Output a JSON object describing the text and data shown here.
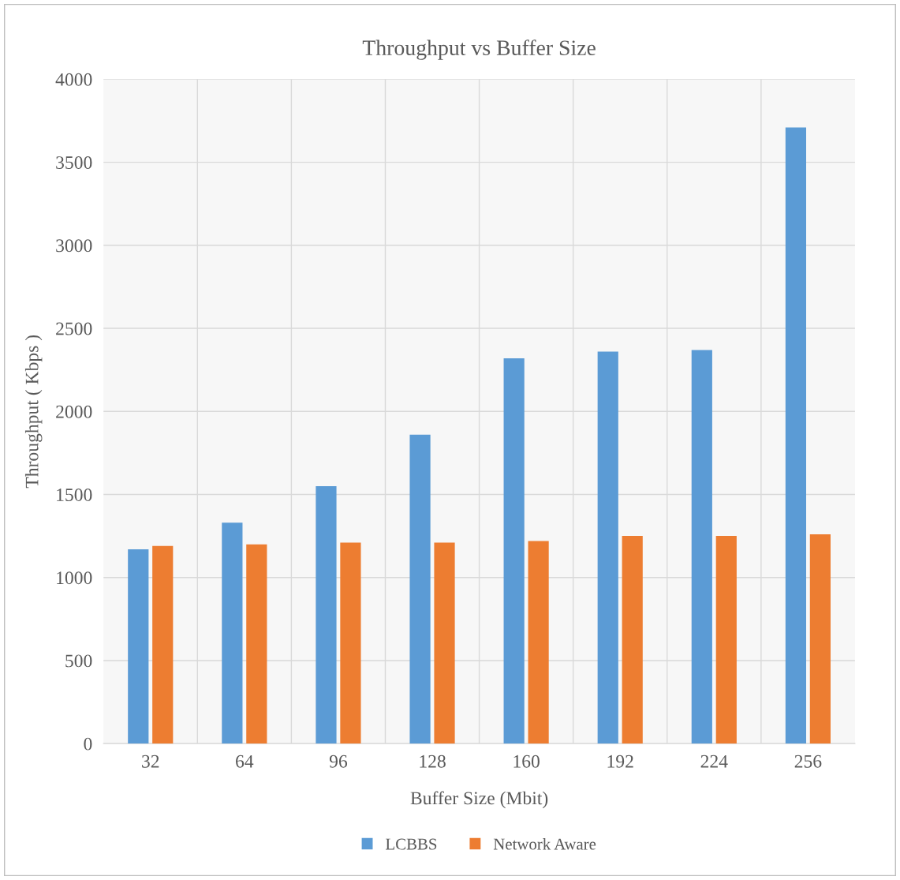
{
  "chart_data": {
    "type": "bar",
    "title": "Throughput vs Buffer Size",
    "xlabel": "Buffer Size (Mbit)",
    "ylabel": "Throughput ( Kbps )",
    "categories": [
      "32",
      "64",
      "96",
      "128",
      "160",
      "192",
      "224",
      "256"
    ],
    "series": [
      {
        "name": "LCBBS",
        "color": "#5b9bd5",
        "values": [
          1170,
          1330,
          1550,
          1860,
          2320,
          2360,
          2370,
          3710
        ]
      },
      {
        "name": "Network Aware",
        "color": "#ed7d31",
        "values": [
          1190,
          1200,
          1210,
          1210,
          1220,
          1250,
          1250,
          1260
        ]
      }
    ],
    "ylim": [
      0,
      4000
    ],
    "yticks": [
      0,
      500,
      1000,
      1500,
      2000,
      2500,
      3000,
      3500,
      4000
    ],
    "grid": true,
    "legend": "bottom"
  }
}
